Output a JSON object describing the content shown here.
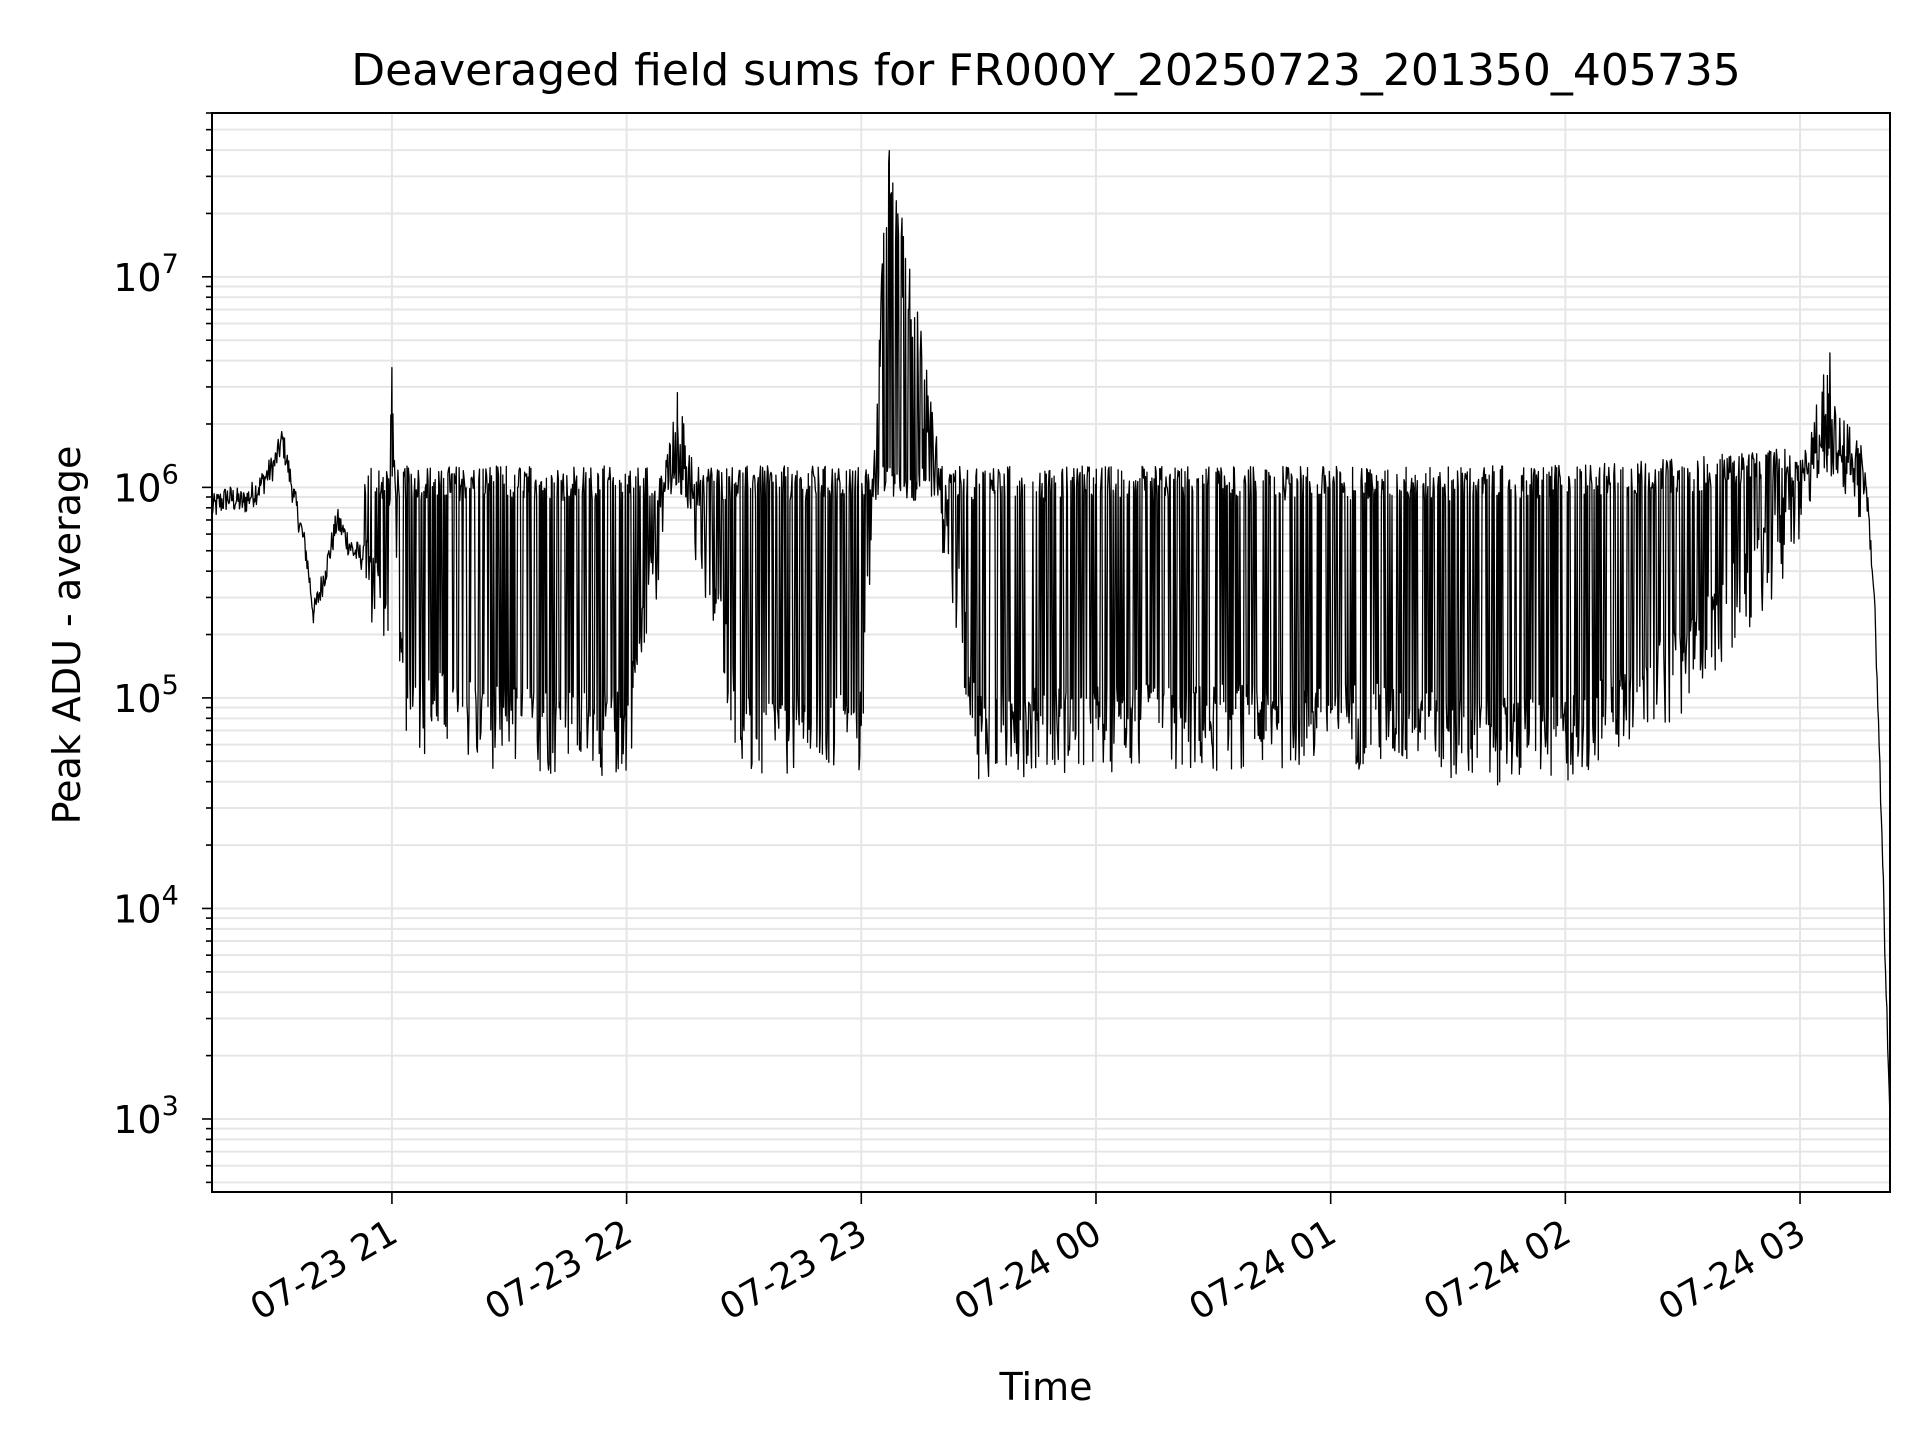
{
  "chart_data": {
    "type": "line",
    "title": "Deaveraged field sums for FR000Y_20250723_201350_405735",
    "xlabel": "Time",
    "ylabel": "Peak ADU - average",
    "yscale": "log",
    "ylim": [
      450,
      60000000
    ],
    "xlim": [
      "2025-07-23 20:14",
      "2025-07-24 03:23"
    ],
    "grid": true,
    "line_color": "#000000",
    "grid_color": "#e6e6e6",
    "x_ticks": [
      {
        "t": "2025-07-23 21:00",
        "label": "07-23 21"
      },
      {
        "t": "2025-07-23 22:00",
        "label": "07-23 22"
      },
      {
        "t": "2025-07-23 23:00",
        "label": "07-23 23"
      },
      {
        "t": "2025-07-24 00:00",
        "label": "07-24 00"
      },
      {
        "t": "2025-07-24 01:00",
        "label": "07-24 01"
      },
      {
        "t": "2025-07-24 02:00",
        "label": "07-24 02"
      },
      {
        "t": "2025-07-24 03:00",
        "label": "07-24 03"
      }
    ],
    "y_ticks": [
      {
        "v": 1000,
        "base": "10",
        "exp": "3"
      },
      {
        "v": 10000,
        "base": "10",
        "exp": "4"
      },
      {
        "v": 100000,
        "base": "10",
        "exp": "5"
      },
      {
        "v": 1000000,
        "base": "10",
        "exp": "6"
      },
      {
        "v": 10000000,
        "base": "10",
        "exp": "7"
      }
    ],
    "series": [
      {
        "x": [
          "2025-07-23 20:14",
          "2025-07-23 20:18",
          "2025-07-23 20:22",
          "2025-07-23 20:26",
          "2025-07-23 20:30",
          "2025-07-23 20:32",
          "2025-07-23 20:35",
          "2025-07-23 20:38",
          "2025-07-23 20:40",
          "2025-07-23 20:43",
          "2025-07-23 20:46",
          "2025-07-23 20:50",
          "2025-07-23 20:54",
          "2025-07-23 20:57",
          "2025-07-23 20:59",
          "2025-07-23 21:00",
          "2025-07-23 21:02",
          "2025-07-23 21:04",
          "2025-07-23 21:30",
          "2025-07-23 22:00",
          "2025-07-23 22:13",
          "2025-07-23 22:30",
          "2025-07-23 23:00",
          "2025-07-23 23:07",
          "2025-07-23 23:30",
          "2025-07-24 00:00",
          "2025-07-24 00:30",
          "2025-07-24 01:00",
          "2025-07-24 01:20",
          "2025-07-24 01:30",
          "2025-07-24 02:00",
          "2025-07-24 02:30",
          "2025-07-24 03:00",
          "2025-07-24 03:07",
          "2025-07-24 03:12",
          "2025-07-24 03:17",
          "2025-07-24 03:19",
          "2025-07-24 03:21",
          "2025-07-24 03:23"
        ],
        "y": [
          800000,
          900000,
          850000,
          1000000,
          1300000,
          1700000,
          900000,
          500000,
          250000,
          400000,
          700000,
          500000,
          450000,
          300000,
          250000,
          3700000,
          150000,
          100000,
          80000,
          75000,
          2000000,
          70000,
          75000,
          35000000,
          75000,
          80000,
          80000,
          85000,
          80000,
          70000,
          70000,
          150000,
          800000,
          3400000,
          1500000,
          1000000,
          300000,
          20000,
          900
        ]
      }
    ],
    "noise": {
      "start": "2025-07-23 20:53",
      "end": "2025-07-24 03:16",
      "low_min": 35000,
      "note_hidden": ""
    }
  }
}
